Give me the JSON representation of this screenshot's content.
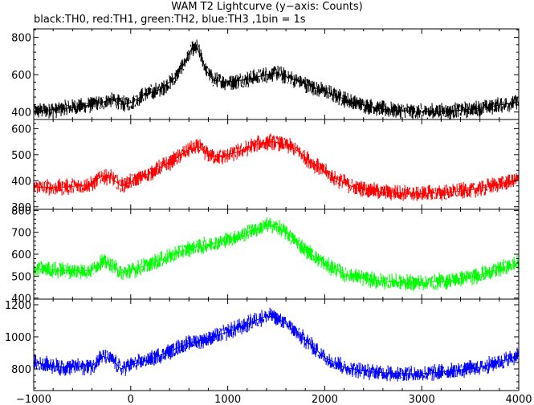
{
  "title": "WAM T2 Lightcurve (y−axis: Counts)",
  "subtitle": "black:TH0, red:TH1, green:TH2, blue:TH3 ,1bin = 1s",
  "chart_data": {
    "type": "line",
    "xlim": [
      -1000,
      4000
    ],
    "x_ticks": [
      -1000,
      0,
      1000,
      2000,
      3000,
      4000
    ],
    "x_tick_labels": [
      "−1000",
      "0",
      "1000",
      "2000",
      "3000",
      "4000"
    ],
    "panels": [
      {
        "name": "TH0",
        "color": "#000000",
        "ylim": [
          360,
          845
        ],
        "y_ticks": [
          400,
          600,
          800
        ],
        "y_tick_labels": [
          "400",
          "600",
          "800"
        ],
        "x": [
          -1000,
          -750,
          -500,
          -300,
          -200,
          -100,
          0,
          100,
          150,
          300,
          450,
          550,
          620,
          680,
          720,
          780,
          850,
          1000,
          1200,
          1400,
          1500,
          1700,
          2000,
          2300,
          2600,
          3000,
          3300,
          3600,
          4000
        ],
        "y": [
          405,
          415,
          430,
          450,
          470,
          440,
          450,
          480,
          495,
          520,
          580,
          660,
          730,
          745,
          700,
          620,
          570,
          560,
          575,
          600,
          610,
          570,
          510,
          450,
          415,
          400,
          405,
          420,
          455
        ]
      },
      {
        "name": "TH1",
        "color": "#ff0000",
        "ylim": [
          290,
          635
        ],
        "y_ticks": [
          300,
          400,
          500,
          600
        ],
        "y_tick_labels": [
          "300",
          "400",
          "500",
          "600"
        ],
        "x": [
          -1000,
          -700,
          -400,
          -300,
          -200,
          -100,
          0,
          200,
          400,
          600,
          700,
          800,
          900,
          1100,
          1300,
          1450,
          1550,
          1700,
          1900,
          2100,
          2300,
          2600,
          3000,
          3300,
          3600,
          4000
        ],
        "y": [
          375,
          375,
          385,
          420,
          410,
          380,
          395,
          430,
          470,
          520,
          530,
          500,
          490,
          510,
          540,
          550,
          545,
          520,
          460,
          410,
          375,
          355,
          350,
          355,
          370,
          405
        ]
      },
      {
        "name": "TH2",
        "color": "#00ff00",
        "ylim": [
          395,
          805
        ],
        "y_ticks": [
          400,
          500,
          600,
          700,
          800
        ],
        "y_tick_labels": [
          "400",
          "500",
          "600",
          "700",
          "800"
        ],
        "x": [
          -1000,
          -700,
          -400,
          -300,
          -200,
          -100,
          0,
          200,
          400,
          600,
          800,
          1000,
          1200,
          1400,
          1500,
          1600,
          1800,
          2000,
          2200,
          2500,
          2800,
          3000,
          3300,
          3600,
          4000
        ],
        "y": [
          535,
          525,
          525,
          570,
          550,
          515,
          525,
          555,
          590,
          625,
          645,
          665,
          700,
          730,
          725,
          700,
          620,
          555,
          510,
          480,
          470,
          470,
          480,
          505,
          560
        ]
      },
      {
        "name": "TH3",
        "color": "#0000ff",
        "ylim": [
          665,
          1235
        ],
        "y_ticks": [
          800,
          1000,
          1200
        ],
        "y_tick_labels": [
          "800",
          "1000",
          "1200"
        ],
        "x": [
          -1000,
          -700,
          -400,
          -300,
          -200,
          -100,
          0,
          200,
          400,
          600,
          800,
          1000,
          1200,
          1400,
          1500,
          1600,
          1800,
          2000,
          2200,
          2500,
          2800,
          3000,
          3300,
          3600,
          4000
        ],
        "y": [
          840,
          810,
          815,
          880,
          860,
          800,
          825,
          860,
          910,
          960,
          990,
          1030,
          1080,
          1130,
          1120,
          1080,
          980,
          870,
          810,
          780,
          770,
          770,
          785,
          810,
          880
        ]
      }
    ]
  }
}
